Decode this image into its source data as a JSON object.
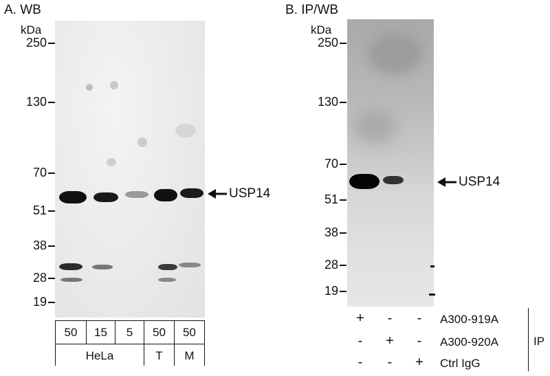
{
  "panelA": {
    "title": "A. WB",
    "unit": "kDa",
    "markers": [
      "250",
      "130",
      "70",
      "51",
      "38",
      "28",
      "19"
    ],
    "target_label": "USP14",
    "lane_amounts": [
      "50",
      "15",
      "5",
      "50",
      "50"
    ],
    "cell_lines": [
      "HeLa",
      "T",
      "M"
    ]
  },
  "panelB": {
    "title": "B. IP/WB",
    "unit": "kDa",
    "markers": [
      "250",
      "130",
      "70",
      "51",
      "38",
      "28",
      "19"
    ],
    "target_label": "USP14",
    "antibodies": [
      {
        "name": "A300-919A",
        "signs": [
          "+",
          "-",
          "-"
        ]
      },
      {
        "name": "A300-920A",
        "signs": [
          "-",
          "+",
          "-"
        ]
      },
      {
        "name": "Ctrl IgG",
        "signs": [
          "-",
          "-",
          "+"
        ]
      }
    ],
    "ip_label": "IP"
  }
}
